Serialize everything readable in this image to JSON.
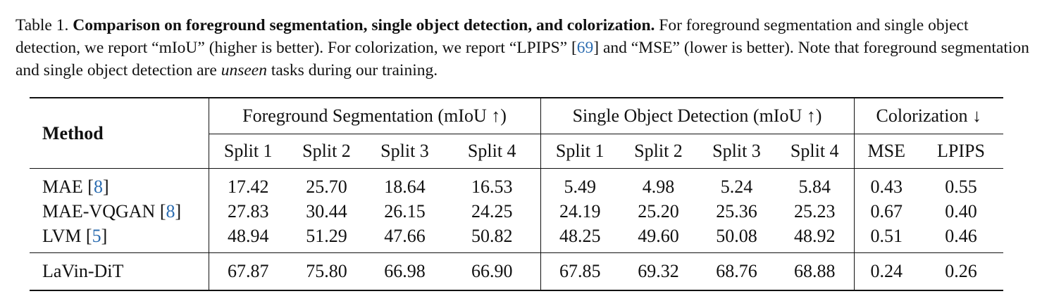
{
  "caption": {
    "label": "Table 1.",
    "bold_title": "Comparison on foreground segmentation, single object detection, and colorization.",
    "text_a": "For foreground segmentation and single object detection, we report “mIoU” (higher is better). For colorization, we report “LPIPS” [",
    "cite_a": "69",
    "text_b": "] and “MSE” (lower is better). Note that foreground segmentation and single object detection are ",
    "italic": "unseen",
    "text_c": " tasks during our training."
  },
  "table": {
    "method_header": "Method",
    "groups": [
      {
        "name": "Foreground Segmentation",
        "unit": "(mIoU ↑)"
      },
      {
        "name": "Single Object Detection",
        "unit": "(mIoU ↑)"
      },
      {
        "name": "Colorization ↓",
        "unit": ""
      }
    ],
    "subheaders": [
      "Split 1",
      "Split 2",
      "Split 3",
      "Split 4",
      "Split 1",
      "Split 2",
      "Split 3",
      "Split 4",
      "MSE",
      "LPIPS"
    ],
    "rows": [
      {
        "method": "MAE [",
        "cite": "8",
        "suffix": "]",
        "values": [
          "17.42",
          "25.70",
          "18.64",
          "16.53",
          "5.49",
          "4.98",
          "5.24",
          "5.84",
          "0.43",
          "0.55"
        ]
      },
      {
        "method": "MAE-VQGAN [",
        "cite": "8",
        "suffix": "]",
        "values": [
          "27.83",
          "30.44",
          "26.15",
          "24.25",
          "24.19",
          "25.20",
          "25.36",
          "25.23",
          "0.67",
          "0.40"
        ]
      },
      {
        "method": "LVM [",
        "cite": "5",
        "suffix": "]",
        "values": [
          "48.94",
          "51.29",
          "47.66",
          "50.82",
          "48.25",
          "49.60",
          "50.08",
          "48.92",
          "0.51",
          "0.46"
        ]
      }
    ],
    "final_row": {
      "method": "LaVin-DiT",
      "values": [
        "67.87",
        "75.80",
        "66.98",
        "66.90",
        "67.85",
        "69.32",
        "68.76",
        "68.88",
        "0.24",
        "0.26"
      ]
    }
  },
  "colors": {
    "citation": "#2b6cb0",
    "text": "#111111"
  }
}
